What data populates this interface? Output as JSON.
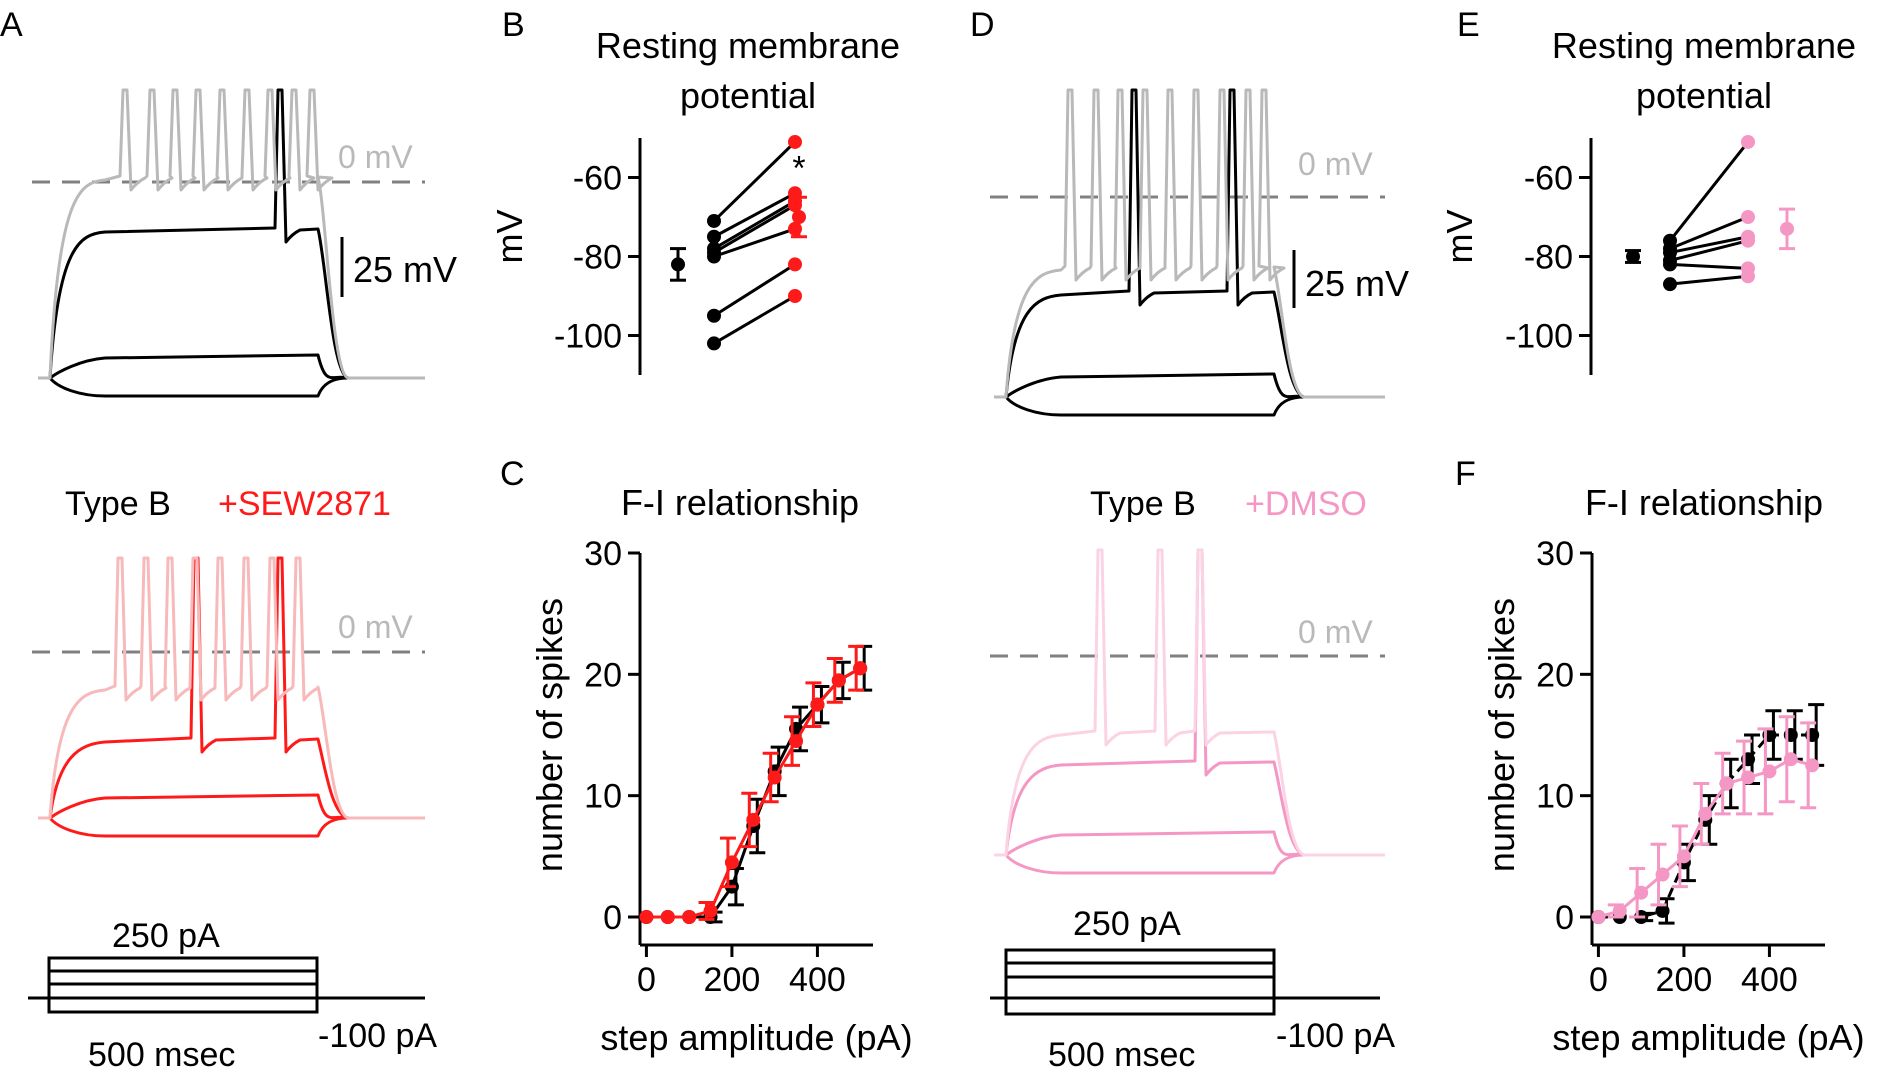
{
  "colors": {
    "control": "#000000",
    "sew": "#ff1a1a",
    "sew_light": "#f7b9b9",
    "dmso": "#f597c4",
    "dmso_light": "#fbd3e4",
    "grey": "#b9b9b9",
    "dash": "#808080"
  },
  "panels": {
    "A": {
      "letter": "A",
      "zero_label": "0 mV",
      "scale_label": "25 mV",
      "condition_label": "Type B",
      "drug_label": "+SEW2871",
      "step_label": "250 pA",
      "duration_label": "500 msec",
      "neg_label": "-100 pA"
    },
    "D": {
      "letter": "D",
      "zero_label": "0 mV",
      "scale_label": "25 mV",
      "condition_label": "Type B",
      "drug_label": "+DMSO",
      "step_label": "250 pA",
      "duration_label": "500 msec",
      "neg_label": "-100 pA"
    }
  },
  "chart_data": [
    {
      "id": "B",
      "letter": "B",
      "type": "scatter",
      "title": [
        "Resting membrane",
        "potential"
      ],
      "ylabel": "mV",
      "ylim": [
        -110,
        -50
      ],
      "yticks": [
        -60,
        -80,
        -100
      ],
      "significance": "*",
      "mean_before": {
        "value": -82,
        "error": 4
      },
      "mean_after": {
        "value": -70,
        "error": 5
      },
      "pairs": [
        [
          -71,
          -51
        ],
        [
          -75,
          -64
        ],
        [
          -78,
          -66
        ],
        [
          -79,
          -67
        ],
        [
          -80,
          -73
        ],
        [
          -95,
          -82
        ],
        [
          -102,
          -90
        ]
      ]
    },
    {
      "id": "C",
      "letter": "C",
      "type": "line",
      "title": "F-I relationship",
      "xlabel": "step amplitude (pA)",
      "ylabel": "number of spikes",
      "xlim": [
        -15,
        530
      ],
      "ylim": [
        0,
        30
      ],
      "xticks": [
        0,
        200,
        400
      ],
      "yticks": [
        0,
        10,
        20,
        30
      ],
      "x": [
        0,
        50,
        100,
        150,
        200,
        250,
        300,
        350,
        400,
        450,
        500
      ],
      "series": [
        {
          "name": "control",
          "values": [
            0,
            0,
            0,
            0,
            2.5,
            7.5,
            12,
            15.5,
            17.5,
            19.5,
            20.5
          ],
          "errors": [
            0,
            0,
            0,
            0.4,
            1.5,
            2.2,
            2.0,
            1.8,
            1.5,
            1.5,
            1.8
          ]
        },
        {
          "name": "SEW2871",
          "values": [
            0,
            0,
            0,
            0.5,
            4.5,
            8,
            11.5,
            14.5,
            17.5,
            19.5,
            20.5
          ],
          "errors": [
            0,
            0,
            0,
            0.7,
            2.0,
            2.2,
            2.0,
            2.0,
            1.8,
            1.8,
            1.8
          ]
        }
      ]
    },
    {
      "id": "E",
      "letter": "E",
      "type": "scatter",
      "title": [
        "Resting membrane",
        "potential"
      ],
      "ylabel": "mV",
      "ylim": [
        -110,
        -50
      ],
      "yticks": [
        -60,
        -80,
        -100
      ],
      "significance": "",
      "mean_before": {
        "value": -80,
        "error": 1.5
      },
      "mean_after": {
        "value": -73,
        "error": 5
      },
      "pairs": [
        [
          -76,
          -51
        ],
        [
          -78,
          -70
        ],
        [
          -79,
          -75
        ],
        [
          -81,
          -76
        ],
        [
          -82,
          -83
        ],
        [
          -87,
          -85
        ]
      ]
    },
    {
      "id": "F",
      "letter": "F",
      "type": "line",
      "title": "F-I relationship",
      "xlabel": "step amplitude (pA)",
      "ylabel": "number of spikes",
      "xlim": [
        -15,
        530
      ],
      "ylim": [
        0,
        30
      ],
      "xticks": [
        0,
        200,
        400
      ],
      "yticks": [
        0,
        10,
        20,
        30
      ],
      "x": [
        0,
        50,
        100,
        150,
        200,
        250,
        300,
        350,
        400,
        450,
        500
      ],
      "series": [
        {
          "name": "control",
          "values": [
            0,
            0,
            0,
            0.5,
            4.5,
            8,
            11,
            13,
            15,
            15,
            15
          ],
          "errors": [
            0,
            0,
            0.3,
            1.0,
            1.5,
            2.0,
            2.0,
            2.0,
            2.0,
            2.0,
            2.5
          ]
        },
        {
          "name": "DMSO",
          "values": [
            0,
            0.5,
            2,
            3.5,
            5,
            8.5,
            11,
            11.5,
            12,
            13,
            12.5
          ],
          "errors": [
            0,
            0.5,
            2.0,
            2.5,
            2.5,
            2.5,
            2.5,
            3.0,
            3.5,
            3.5,
            3.5
          ]
        }
      ]
    }
  ]
}
